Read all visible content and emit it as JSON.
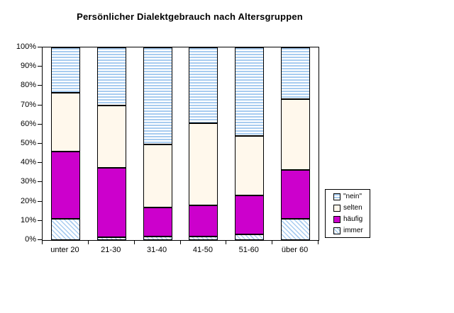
{
  "chart_data": {
    "type": "bar",
    "subtype": "stacked-100-percent",
    "title": "Persönlicher Dialektgebrauch nach Altersgruppen",
    "categories": [
      "unter 20",
      "21-30",
      "31-40",
      "41-50",
      "51-60",
      "über 60"
    ],
    "series": [
      {
        "name": "immer",
        "pattern": "diagonal-stripes",
        "color": "#A8CCF0",
        "values": [
          11,
          1.5,
          2,
          2,
          3,
          11
        ]
      },
      {
        "name": "häufig",
        "pattern": "solid",
        "color": "#CC00CC",
        "values": [
          35,
          36,
          15,
          16,
          20,
          25.5
        ]
      },
      {
        "name": "selten",
        "pattern": "solid",
        "color": "#FFF8EC",
        "values": [
          30.5,
          32.5,
          32.5,
          42.5,
          31,
          36.5
        ]
      },
      {
        "name": "\"nein\"",
        "pattern": "horizontal-stripes",
        "color": "#A8CCF0",
        "values": [
          23.5,
          30,
          50.5,
          39.5,
          46,
          27
        ]
      }
    ],
    "legend_order_top_to_bottom": [
      "\"nein\"",
      "selten",
      "häufig",
      "immer"
    ],
    "y_ticks": [
      "100%",
      "90%",
      "80%",
      "70%",
      "60%",
      "50%",
      "40%",
      "30%",
      "20%",
      "10%",
      "0%"
    ],
    "ylim": [
      0,
      100
    ],
    "xlabel": "",
    "ylabel": "",
    "grid": "off",
    "legend_position": "right",
    "axis_color": "#000000",
    "background_color": "#FFFFFF"
  }
}
